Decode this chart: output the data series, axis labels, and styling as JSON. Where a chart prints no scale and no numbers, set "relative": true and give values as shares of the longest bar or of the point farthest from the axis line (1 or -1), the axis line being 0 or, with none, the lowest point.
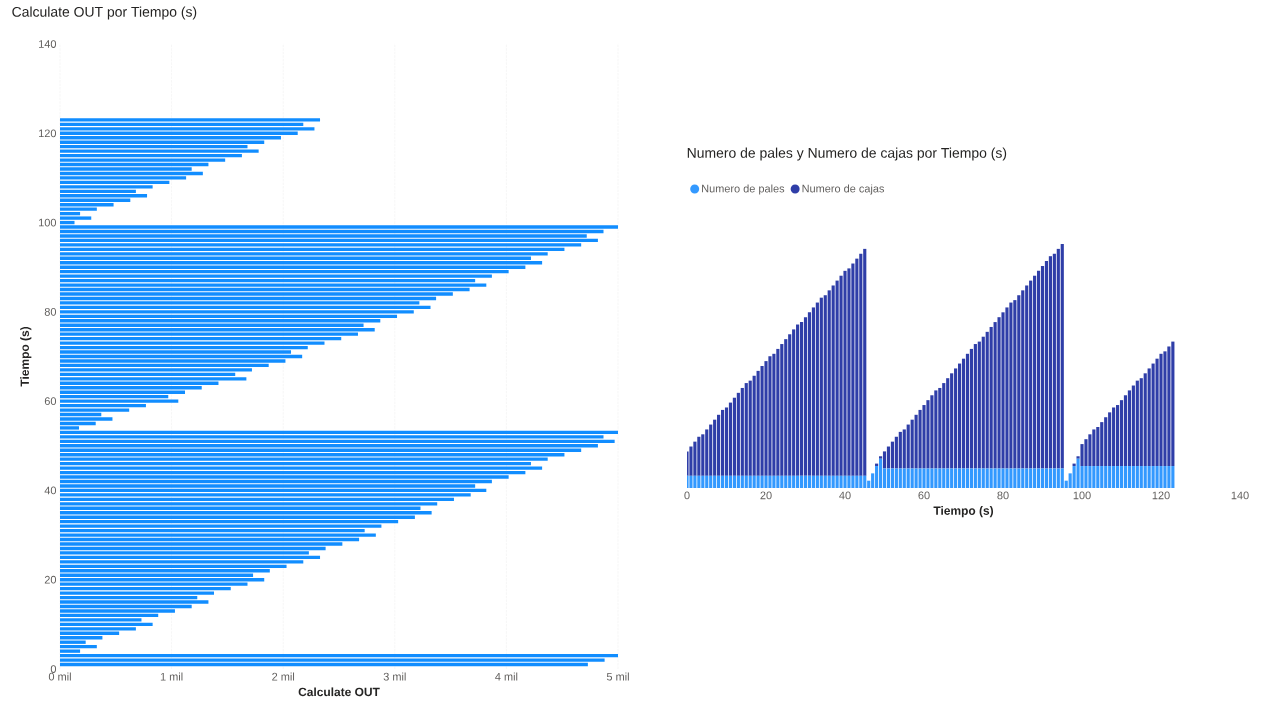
{
  "chart_data": [
    {
      "type": "bar",
      "orientation": "horizontal",
      "title": "Calculate OUT por Tiempo (s)",
      "xlabel": "Calculate OUT",
      "ylabel": "Tiempo (s)",
      "color": "#118dff",
      "grid": "x",
      "xlim": [
        0,
        5
      ],
      "ylim": [
        0,
        140
      ],
      "xticks": [
        {
          "value": 0,
          "label": "0 mil"
        },
        {
          "value": 1,
          "label": "1 mil"
        },
        {
          "value": 2,
          "label": "2 mil"
        },
        {
          "value": 3,
          "label": "3 mil"
        },
        {
          "value": 4,
          "label": "4 mil"
        },
        {
          "value": 5,
          "label": "5 mil"
        }
      ],
      "yticks": [
        0,
        20,
        40,
        60,
        80,
        100,
        120,
        140
      ],
      "x": [
        1,
        2,
        3,
        4,
        5,
        6,
        7,
        8,
        9,
        10,
        11,
        12,
        13,
        14,
        15,
        16,
        17,
        18,
        19,
        20,
        21,
        22,
        23,
        24,
        25,
        26,
        27,
        28,
        29,
        30,
        31,
        32,
        33,
        34,
        35,
        36,
        37,
        38,
        39,
        40,
        41,
        42,
        43,
        44,
        45,
        46,
        47,
        48,
        49,
        50,
        51,
        52,
        53,
        54,
        55,
        56,
        57,
        58,
        59,
        60,
        61,
        62,
        63,
        64,
        65,
        66,
        67,
        68,
        69,
        70,
        71,
        72,
        73,
        74,
        75,
        76,
        77,
        78,
        79,
        80,
        81,
        82,
        83,
        84,
        85,
        86,
        87,
        88,
        89,
        90,
        91,
        92,
        93,
        94,
        95,
        96,
        97,
        98,
        99,
        100,
        101,
        102,
        103,
        104,
        105,
        106,
        107,
        108,
        109,
        110,
        111,
        112,
        113,
        114,
        115,
        116,
        117,
        118,
        119,
        120,
        121,
        122,
        123
      ],
      "values": [
        4.73,
        4.88,
        5.0,
        0.18,
        0.33,
        0.23,
        0.38,
        0.53,
        0.68,
        0.83,
        0.73,
        0.88,
        1.03,
        1.18,
        1.33,
        1.23,
        1.38,
        1.53,
        1.68,
        1.83,
        1.73,
        1.88,
        2.03,
        2.18,
        2.33,
        2.23,
        2.38,
        2.53,
        2.68,
        2.83,
        2.73,
        2.88,
        3.03,
        3.18,
        3.33,
        3.23,
        3.38,
        3.53,
        3.68,
        3.82,
        3.72,
        3.87,
        4.02,
        4.17,
        4.32,
        4.22,
        4.37,
        4.52,
        4.67,
        4.82,
        4.97,
        4.87,
        5.0,
        0.17,
        0.32,
        0.47,
        0.37,
        0.62,
        0.77,
        1.06,
        0.97,
        1.12,
        1.27,
        1.42,
        1.67,
        1.57,
        1.72,
        1.87,
        2.02,
        2.17,
        2.07,
        2.22,
        2.37,
        2.52,
        2.67,
        2.82,
        2.72,
        2.87,
        3.02,
        3.17,
        3.32,
        3.22,
        3.37,
        3.52,
        3.67,
        3.82,
        3.72,
        3.87,
        4.02,
        4.17,
        4.32,
        4.22,
        4.37,
        4.52,
        4.67,
        4.82,
        4.72,
        4.87,
        5.0,
        0.13,
        0.28,
        0.18,
        0.33,
        0.48,
        0.63,
        0.78,
        0.68,
        0.83,
        0.98,
        1.13,
        1.28,
        1.18,
        1.33,
        1.48,
        1.63,
        1.78,
        1.68,
        1.83,
        1.98,
        2.13,
        2.28,
        2.18,
        2.33
      ]
    },
    {
      "type": "bar",
      "stacked": true,
      "relative": true,
      "title": "Numero de pales y Numero de cajas por Tiempo (s)",
      "xlabel": "Tiempo (s)",
      "legend": "top left",
      "tick_labels": "x",
      "xlim": [
        0,
        140
      ],
      "xticks": [
        0,
        20,
        40,
        60,
        80,
        100,
        120,
        140
      ],
      "x": [
        0,
        1,
        2,
        3,
        4,
        5,
        6,
        7,
        8,
        9,
        10,
        11,
        12,
        13,
        14,
        15,
        16,
        17,
        18,
        19,
        20,
        21,
        22,
        23,
        24,
        25,
        26,
        27,
        28,
        29,
        30,
        31,
        32,
        33,
        34,
        35,
        36,
        37,
        38,
        39,
        40,
        41,
        42,
        43,
        44,
        45,
        46,
        47,
        48,
        49,
        50,
        51,
        52,
        53,
        54,
        55,
        56,
        57,
        58,
        59,
        60,
        61,
        62,
        63,
        64,
        65,
        66,
        67,
        68,
        69,
        70,
        71,
        72,
        73,
        74,
        75,
        76,
        77,
        78,
        79,
        80,
        81,
        82,
        83,
        84,
        85,
        86,
        87,
        88,
        89,
        90,
        91,
        92,
        93,
        94,
        95,
        96,
        97,
        98,
        99,
        100,
        101,
        102,
        103,
        104,
        105,
        106,
        107,
        108,
        109,
        110,
        111,
        112,
        113,
        114,
        115,
        116,
        117,
        118,
        119,
        120,
        121,
        122,
        123
      ],
      "series": [
        {
          "name": "Numero de pales",
          "color": "#3399ff",
          "values": [
            0.05,
            0.05,
            0.05,
            0.05,
            0.05,
            0.05,
            0.05,
            0.05,
            0.05,
            0.05,
            0.05,
            0.05,
            0.05,
            0.05,
            0.05,
            0.05,
            0.05,
            0.05,
            0.05,
            0.05,
            0.05,
            0.05,
            0.05,
            0.05,
            0.05,
            0.05,
            0.05,
            0.05,
            0.05,
            0.05,
            0.05,
            0.05,
            0.05,
            0.05,
            0.05,
            0.05,
            0.05,
            0.05,
            0.05,
            0.05,
            0.05,
            0.05,
            0.05,
            0.05,
            0.05,
            0.05,
            0.03,
            0.06,
            0.09,
            0.12,
            0.08,
            0.08,
            0.08,
            0.08,
            0.08,
            0.08,
            0.08,
            0.08,
            0.08,
            0.08,
            0.08,
            0.08,
            0.08,
            0.08,
            0.08,
            0.08,
            0.08,
            0.08,
            0.08,
            0.08,
            0.08,
            0.08,
            0.08,
            0.08,
            0.08,
            0.08,
            0.08,
            0.08,
            0.08,
            0.08,
            0.08,
            0.08,
            0.08,
            0.08,
            0.08,
            0.08,
            0.08,
            0.08,
            0.08,
            0.08,
            0.08,
            0.08,
            0.08,
            0.08,
            0.08,
            0.08,
            0.03,
            0.06,
            0.09,
            0.12,
            0.09,
            0.09,
            0.09,
            0.09,
            0.09,
            0.09,
            0.09,
            0.09,
            0.09,
            0.09,
            0.09,
            0.09,
            0.09,
            0.09,
            0.09,
            0.09,
            0.09,
            0.09,
            0.09,
            0.09,
            0.09,
            0.09,
            0.09,
            0.09
          ]
        },
        {
          "name": "Numero de cajas",
          "color": "#2f3ea8",
          "values": [
            0.1,
            0.12,
            0.14,
            0.16,
            0.17,
            0.19,
            0.21,
            0.23,
            0.25,
            0.27,
            0.28,
            0.3,
            0.32,
            0.34,
            0.36,
            0.38,
            0.39,
            0.41,
            0.43,
            0.45,
            0.47,
            0.49,
            0.5,
            0.52,
            0.54,
            0.56,
            0.58,
            0.6,
            0.62,
            0.63,
            0.65,
            0.67,
            0.69,
            0.71,
            0.73,
            0.74,
            0.76,
            0.78,
            0.8,
            0.82,
            0.84,
            0.85,
            0.87,
            0.89,
            0.91,
            0.93,
            0,
            0,
            0.01,
            0.01,
            0.07,
            0.09,
            0.11,
            0.13,
            0.15,
            0.16,
            0.18,
            0.2,
            0.22,
            0.24,
            0.26,
            0.28,
            0.3,
            0.32,
            0.33,
            0.35,
            0.37,
            0.39,
            0.41,
            0.43,
            0.45,
            0.47,
            0.49,
            0.51,
            0.52,
            0.54,
            0.56,
            0.58,
            0.6,
            0.62,
            0.64,
            0.66,
            0.68,
            0.69,
            0.71,
            0.73,
            0.75,
            0.77,
            0.79,
            0.81,
            0.83,
            0.85,
            0.87,
            0.88,
            0.9,
            0.92,
            0,
            0,
            0.01,
            0.01,
            0.09,
            0.11,
            0.13,
            0.15,
            0.16,
            0.18,
            0.2,
            0.22,
            0.24,
            0.25,
            0.27,
            0.29,
            0.31,
            0.33,
            0.35,
            0.36,
            0.38,
            0.4,
            0.42,
            0.44,
            0.46,
            0.47,
            0.49,
            0.51
          ]
        }
      ]
    }
  ]
}
